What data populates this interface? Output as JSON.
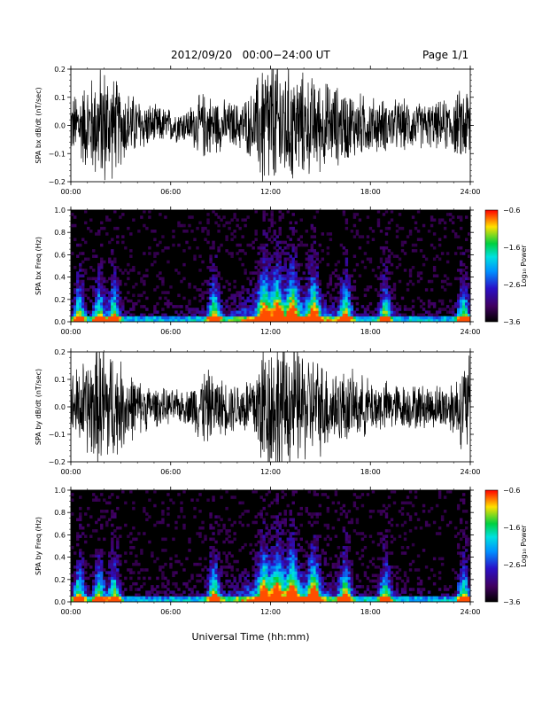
{
  "header": {
    "title": "2012/09/20   00:00−24:00 UT",
    "page": "Page 1/1"
  },
  "xlabel": "Universal Time (hh:mm)",
  "colors": {
    "background": "#ffffff",
    "trace": "#000000",
    "spectrogram_bg": "#000000",
    "colormap": [
      "#000000",
      "#400060",
      "#2a10c8",
      "#0090ff",
      "#00e0e0",
      "#00d040",
      "#ffe000",
      "#ff0000"
    ]
  },
  "chart_data": [
    {
      "type": "line",
      "name": "bx-dbdt",
      "ylabel": "SPA bx dB/dt (nT/sec)",
      "ylim": [
        -0.2,
        0.2
      ],
      "yticks": [
        "0.2",
        "0.1",
        "0.0",
        "−0.1",
        "−0.2"
      ],
      "x_range_hours": [
        0,
        24
      ],
      "xticks": [
        "00:00",
        "06:00",
        "12:00",
        "18:00",
        "24:00"
      ],
      "envelope": {
        "hours": [
          0,
          1,
          2,
          3,
          4,
          5,
          6,
          7,
          8,
          9,
          10,
          11,
          11.5,
          12,
          12.5,
          13,
          14,
          15,
          16,
          17,
          18,
          19,
          20,
          21,
          22,
          23,
          24
        ],
        "amplitude": [
          0.1,
          0.16,
          0.22,
          0.14,
          0.1,
          0.07,
          0.06,
          0.06,
          0.12,
          0.09,
          0.08,
          0.12,
          0.25,
          0.25,
          0.25,
          0.22,
          0.18,
          0.16,
          0.14,
          0.12,
          0.1,
          0.09,
          0.09,
          0.08,
          0.08,
          0.1,
          0.16
        ]
      }
    },
    {
      "type": "heatmap",
      "name": "bx-freq",
      "ylabel": "SPA bx Freq (Hz)",
      "ylim": [
        0,
        1.0
      ],
      "yticks": [
        "1.0",
        "0.8",
        "0.6",
        "0.4",
        "0.2",
        "0.0"
      ],
      "x_range_hours": [
        0,
        24
      ],
      "xticks": [
        "00:00",
        "06:00",
        "12:00",
        "18:00",
        "24:00"
      ],
      "colorbar": {
        "label": "Log₁₀ Power",
        "range": [
          -3.6,
          -0.6
        ],
        "ticks": [
          "−0.6",
          "−1.6",
          "−2.6",
          "−3.6"
        ]
      },
      "bursts_hours": [
        0.5,
        1.7,
        2.6,
        8.6,
        11.6,
        12.4,
        13.3,
        14.6,
        16.5,
        18.9,
        23.6
      ]
    },
    {
      "type": "line",
      "name": "by-dbdt",
      "ylabel": "SPA by dB/dt (nT/sec)",
      "ylim": [
        -0.2,
        0.2
      ],
      "yticks": [
        "0.2",
        "0.1",
        "0.0",
        "−0.1",
        "−0.2"
      ],
      "x_range_hours": [
        0,
        24
      ],
      "xticks": [
        "00:00",
        "06:00",
        "12:00",
        "18:00",
        "24:00"
      ],
      "envelope": {
        "hours": [
          0,
          1,
          2,
          3,
          4,
          5,
          6,
          7,
          8,
          9,
          10,
          11,
          11.5,
          12,
          12.5,
          13,
          14,
          15,
          16,
          17,
          18,
          19,
          20,
          21,
          22,
          23,
          24
        ],
        "amplitude": [
          0.12,
          0.18,
          0.25,
          0.16,
          0.1,
          0.07,
          0.06,
          0.06,
          0.14,
          0.1,
          0.09,
          0.13,
          0.25,
          0.25,
          0.25,
          0.24,
          0.2,
          0.17,
          0.14,
          0.12,
          0.1,
          0.09,
          0.08,
          0.08,
          0.08,
          0.1,
          0.2
        ]
      }
    },
    {
      "type": "heatmap",
      "name": "by-freq",
      "ylabel": "SPA by Freq (Hz)",
      "ylim": [
        0,
        1.0
      ],
      "yticks": [
        "1.0",
        "0.8",
        "0.6",
        "0.4",
        "0.2",
        "0.0"
      ],
      "x_range_hours": [
        0,
        24
      ],
      "xticks": [
        "00:00",
        "06:00",
        "12:00",
        "18:00",
        "24:00"
      ],
      "colorbar": {
        "label": "Log₁₀ Power",
        "range": [
          -3.6,
          -0.6
        ],
        "ticks": [
          "−0.6",
          "−1.6",
          "−2.6",
          "−3.6"
        ]
      },
      "bursts_hours": [
        0.5,
        1.7,
        2.6,
        8.6,
        11.6,
        12.4,
        13.3,
        14.6,
        16.5,
        18.9,
        23.6
      ]
    }
  ]
}
